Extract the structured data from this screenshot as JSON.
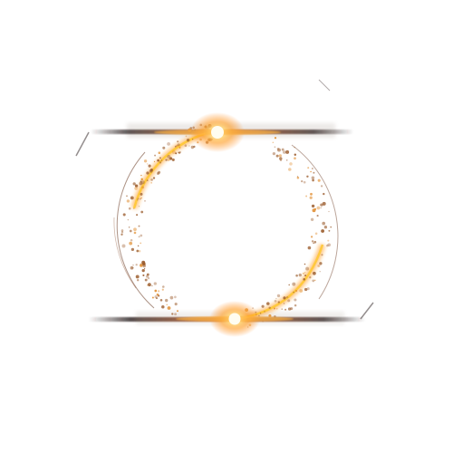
{
  "image": {
    "subject": "glowing-orange-ring-with-light-streaks",
    "colors": {
      "background": "#ffffff",
      "ring_glow": "#f7a21b",
      "ring_core": "#ffd24a",
      "particles": "#9a5a2a",
      "streak": "#3a2a2a",
      "flare_center": "#fffbe8",
      "flare_halo": "#ff9a1f"
    }
  }
}
